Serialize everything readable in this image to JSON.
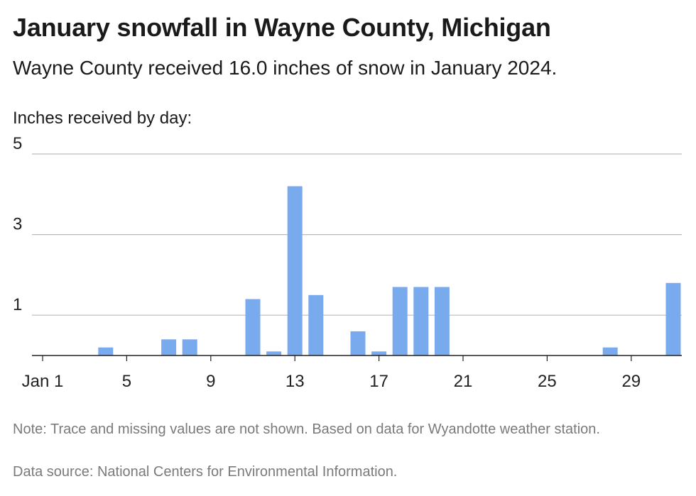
{
  "header": {
    "title": "January snowfall in Wayne County, Michigan",
    "subtitle": "Wayne County received 16.0 inches of snow in January 2024.",
    "ylabel": "Inches received by day:"
  },
  "footer": {
    "note": "Note: Trace and missing values are not shown. Based on data for Wyandotte weather station.",
    "source": "Data source: National Centers for Environmental Information."
  },
  "colors": {
    "bar": "#7aaaee",
    "grid": "#bbbbbb",
    "axis": "#222222"
  },
  "chart_data": {
    "type": "bar",
    "x": [
      1,
      2,
      3,
      4,
      5,
      6,
      7,
      8,
      9,
      10,
      11,
      12,
      13,
      14,
      15,
      16,
      17,
      18,
      19,
      20,
      21,
      22,
      23,
      24,
      25,
      26,
      27,
      28,
      29,
      30,
      31
    ],
    "values": [
      0,
      0,
      0,
      0.2,
      0,
      0,
      0.4,
      0.4,
      0,
      0,
      1.4,
      0.1,
      4.2,
      1.5,
      0,
      0.6,
      0.1,
      1.7,
      1.7,
      1.7,
      0,
      0,
      0,
      0,
      0,
      0,
      0,
      0.2,
      0,
      0,
      1.8
    ],
    "xticks": [
      1,
      5,
      9,
      13,
      17,
      21,
      25,
      29
    ],
    "xtick_labels": [
      "Jan 1",
      "5",
      "9",
      "13",
      "17",
      "21",
      "25",
      "29"
    ],
    "yticks": [
      1,
      3,
      5
    ],
    "ylim": [
      0,
      5
    ],
    "grid": true
  }
}
